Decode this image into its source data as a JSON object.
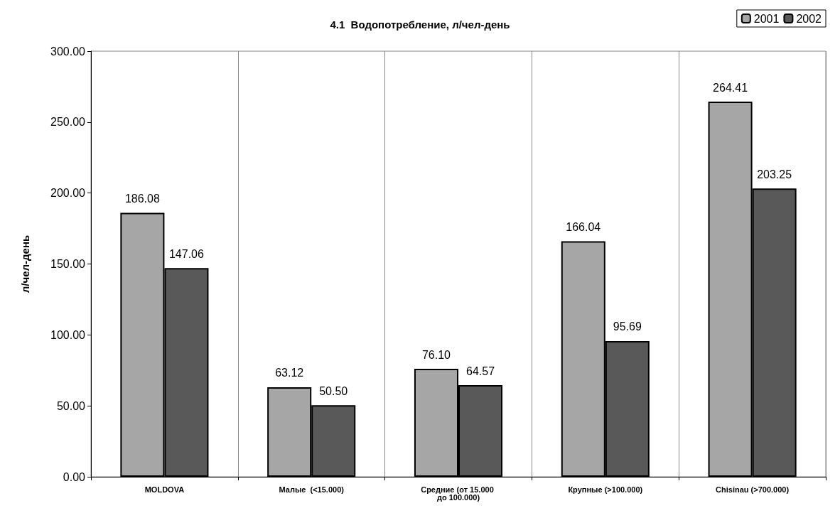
{
  "chart_data": {
    "type": "bar",
    "title": "4.1  Водопотребление, л/чел-день",
    "ylabel": "л/чел-день",
    "categories": [
      "MOLDOVA",
      "Малые  (<15.000)",
      "Средние (от 15.000 до 100.000)",
      "Крупные (>100.000)",
      "Chisinau (>700.000)"
    ],
    "series": [
      {
        "name": "2001",
        "color": "#a6a6a6",
        "values": [
          186.08,
          63.12,
          76.1,
          166.04,
          264.41
        ],
        "value_labels": [
          "186.08",
          "63.12",
          "76.10",
          "166.04",
          "264.41"
        ]
      },
      {
        "name": "2002",
        "color": "#595959",
        "values": [
          147.06,
          50.5,
          64.57,
          95.69,
          203.25
        ],
        "value_labels": [
          "147.06",
          "50.50",
          "64.57",
          "95.69",
          "203.25"
        ]
      }
    ],
    "ylim": [
      0,
      300
    ],
    "yticks": [
      {
        "value": 0,
        "label": "0.00"
      },
      {
        "value": 50,
        "label": "50.00"
      },
      {
        "value": 100,
        "label": "100.00"
      },
      {
        "value": 150,
        "label": "150.00"
      },
      {
        "value": 200,
        "label": "200.00"
      },
      {
        "value": 250,
        "label": "250.00"
      },
      {
        "value": 300,
        "label": "300.00"
      }
    ],
    "grid": "x",
    "legend": "top right"
  }
}
